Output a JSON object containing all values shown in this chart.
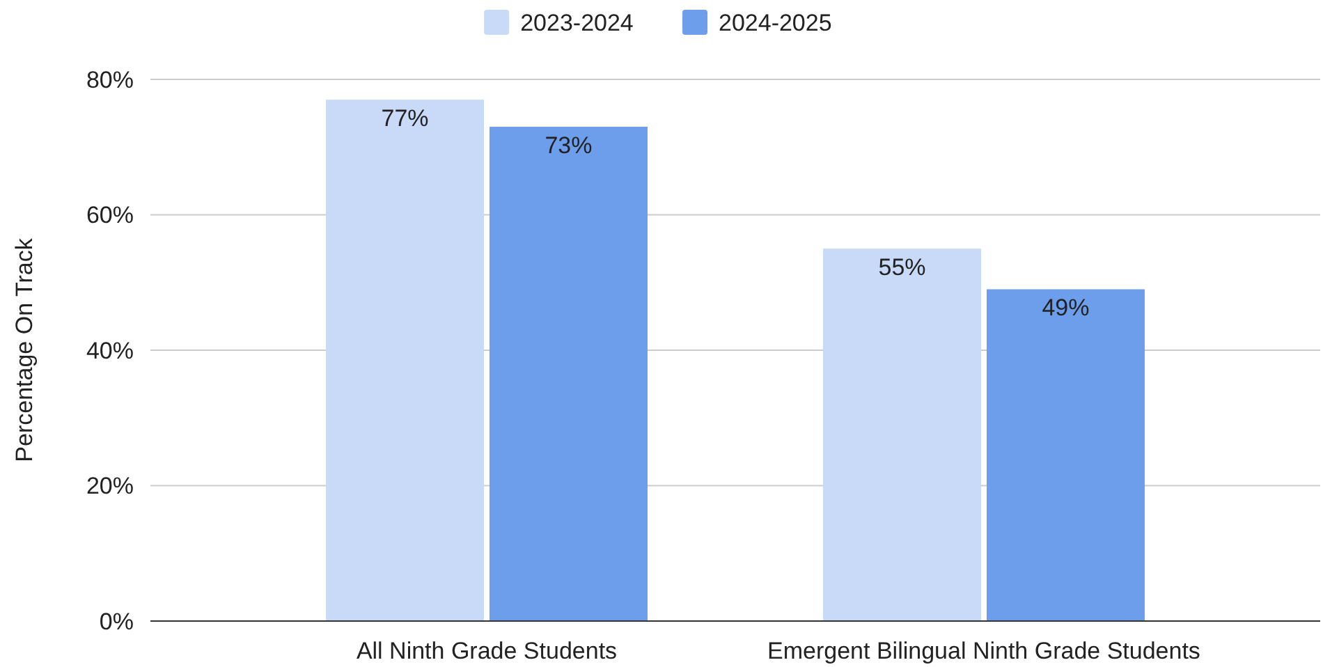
{
  "chart_data": {
    "type": "bar",
    "ylabel": "Percentage On Track",
    "categories": [
      "All Ninth Grade Students",
      "Emergent Bilingual Ninth Grade Students"
    ],
    "series": [
      {
        "name": "2023-2024",
        "color": "#c9daf8",
        "values": [
          77,
          55
        ],
        "value_labels": [
          "77%",
          "55%"
        ]
      },
      {
        "name": "2024-2025",
        "color": "#6d9eeb",
        "values": [
          73,
          49
        ],
        "value_labels": [
          "73%",
          "49%"
        ]
      }
    ],
    "ylim": [
      0,
      80
    ],
    "yticks": [
      {
        "value": 0,
        "label": "0%"
      },
      {
        "value": 20,
        "label": "20%"
      },
      {
        "value": 40,
        "label": "40%"
      },
      {
        "value": 60,
        "label": "60%"
      },
      {
        "value": 80,
        "label": "80%"
      }
    ],
    "grid": "y",
    "legend": "top"
  }
}
